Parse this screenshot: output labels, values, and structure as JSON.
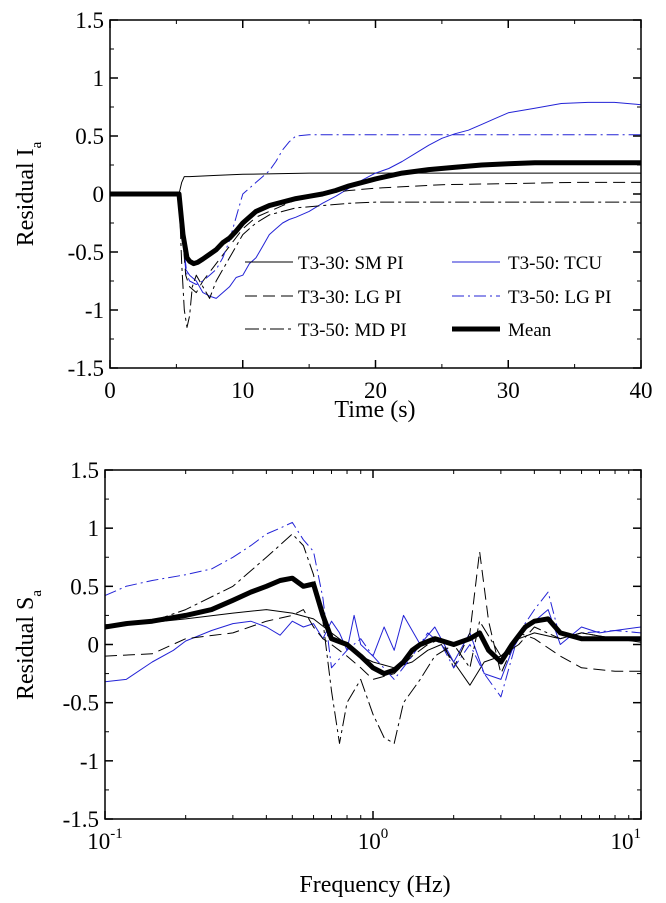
{
  "chart_data": [
    {
      "type": "line",
      "xlabel": "Time (s)",
      "ylabel_main": "Residual  I",
      "ylabel_sub": "a",
      "xlim": [
        0,
        40
      ],
      "ylim": [
        -1.5,
        1.5
      ],
      "x_ticks": [
        0,
        10,
        20,
        30,
        40
      ],
      "x_tick_labels": [
        "0",
        "10",
        "20",
        "30",
        "40"
      ],
      "y_ticks": [
        1.5,
        1,
        0.5,
        0,
        -0.5,
        -1,
        -1.5
      ],
      "y_tick_labels": [
        "1.5",
        "1",
        "0.5",
        "0",
        "-0.5",
        "-1",
        "-1.5"
      ],
      "grid": false,
      "legend_position": "lower-right",
      "series": [
        {
          "name": "T3-30: SM PI",
          "color": "#000000",
          "dash": "solid",
          "width": 1,
          "x": [
            0,
            5.2,
            5.4,
            5.6,
            6,
            8,
            10,
            15,
            20,
            25,
            30,
            35,
            40
          ],
          "y": [
            0,
            0,
            0.1,
            0.15,
            0.15,
            0.16,
            0.17,
            0.18,
            0.18,
            0.18,
            0.18,
            0.18,
            0.18
          ]
        },
        {
          "name": "T3-50: TCU",
          "color": "#2323d6",
          "dash": "solid",
          "width": 1,
          "x": [
            0,
            5.2,
            5.4,
            5.7,
            6,
            6.5,
            7,
            7.5,
            8,
            8.5,
            9,
            9.5,
            10,
            10.5,
            11,
            11.5,
            12,
            12.5,
            13,
            13.5,
            14,
            15,
            16,
            17,
            18,
            19,
            20,
            21,
            22,
            23,
            24,
            25,
            26,
            27,
            28,
            29,
            30,
            32,
            34,
            36,
            38,
            40
          ],
          "y": [
            0,
            0,
            -0.3,
            -0.65,
            -0.7,
            -0.75,
            -0.85,
            -0.88,
            -0.9,
            -0.85,
            -0.8,
            -0.72,
            -0.7,
            -0.6,
            -0.55,
            -0.45,
            -0.35,
            -0.3,
            -0.25,
            -0.22,
            -0.2,
            -0.15,
            -0.08,
            -0.02,
            0.05,
            0.12,
            0.18,
            0.22,
            0.28,
            0.35,
            0.42,
            0.48,
            0.52,
            0.55,
            0.6,
            0.65,
            0.7,
            0.74,
            0.78,
            0.79,
            0.79,
            0.77
          ]
        },
        {
          "name": "T3-30: LG PI",
          "color": "#000000",
          "dash": "12,6",
          "width": 1,
          "x": [
            0,
            5.2,
            5.5,
            5.7,
            6,
            6.5,
            7,
            8,
            9,
            10,
            11,
            12,
            13,
            14,
            16,
            18,
            20,
            25,
            30,
            35,
            40
          ],
          "y": [
            0,
            0,
            -0.4,
            -0.7,
            -0.8,
            -0.85,
            -0.75,
            -0.6,
            -0.45,
            -0.3,
            -0.2,
            -0.15,
            -0.1,
            -0.05,
            0,
            0.03,
            0.05,
            0.08,
            0.09,
            0.1,
            0.1
          ]
        },
        {
          "name": "T3-50: LG PI",
          "color": "#2323d6",
          "dash": "12,4,2,4",
          "width": 1,
          "x": [
            0,
            5.2,
            5.5,
            5.8,
            6,
            6.5,
            7,
            7.5,
            8,
            8.5,
            9,
            9.5,
            10,
            10.5,
            11,
            11.5,
            12,
            12.5,
            13,
            13.5,
            14,
            15,
            16,
            17,
            18,
            19,
            20,
            22,
            24,
            26,
            28,
            30,
            35,
            40
          ],
          "y": [
            0,
            0,
            -0.4,
            -0.7,
            -0.75,
            -0.78,
            -0.75,
            -0.7,
            -0.65,
            -0.55,
            -0.4,
            -0.2,
            0,
            0.05,
            0.1,
            0.15,
            0.2,
            0.28,
            0.38,
            0.45,
            0.5,
            0.51,
            0.51,
            0.51,
            0.51,
            0.51,
            0.51,
            0.51,
            0.51,
            0.51,
            0.51,
            0.51,
            0.51,
            0.51
          ]
        },
        {
          "name": "T3-50: MD PI",
          "color": "#000000",
          "dash": "14,4,3,4",
          "width": 1,
          "x": [
            0,
            5.2,
            5.4,
            5.6,
            5.8,
            6,
            6.2,
            6.5,
            7,
            7.5,
            8,
            9,
            10,
            11,
            12,
            13,
            14,
            16,
            18,
            20,
            25,
            30,
            35,
            40
          ],
          "y": [
            0,
            0,
            -0.6,
            -1,
            -1.15,
            -1.05,
            -0.8,
            -0.7,
            -0.8,
            -0.9,
            -0.75,
            -0.55,
            -0.35,
            -0.25,
            -0.18,
            -0.15,
            -0.12,
            -0.1,
            -0.08,
            -0.07,
            -0.07,
            -0.07,
            -0.07,
            -0.07
          ]
        },
        {
          "name": "Mean",
          "color": "#000000",
          "dash": "solid",
          "width": 5,
          "x": [
            0,
            5.2,
            5.5,
            5.8,
            6,
            6.3,
            6.6,
            7,
            7.5,
            8,
            8.5,
            9,
            9.5,
            10,
            11,
            12,
            13,
            14,
            15,
            16,
            17,
            18,
            20,
            22,
            24,
            26,
            28,
            30,
            32,
            35,
            38,
            40
          ],
          "y": [
            0,
            0,
            -0.35,
            -0.55,
            -0.58,
            -0.6,
            -0.59,
            -0.56,
            -0.52,
            -0.48,
            -0.42,
            -0.38,
            -0.32,
            -0.25,
            -0.15,
            -0.1,
            -0.07,
            -0.04,
            -0.02,
            0,
            0.03,
            0.07,
            0.13,
            0.18,
            0.21,
            0.23,
            0.25,
            0.26,
            0.27,
            0.27,
            0.27,
            0.27
          ]
        }
      ]
    },
    {
      "type": "line",
      "xlabel": "Frequency (Hz)",
      "ylabel_main": "Residual  S",
      "ylabel_sub": "a",
      "xscale": "log",
      "xlim": [
        0.1,
        10
      ],
      "ylim": [
        -1.5,
        1.5
      ],
      "x_ticks": [
        0.1,
        1,
        10
      ],
      "x_tick_labels": [
        {
          "base": "10",
          "exp": "-1"
        },
        {
          "base": "10",
          "exp": "0"
        },
        {
          "base": "10",
          "exp": "1"
        }
      ],
      "y_ticks": [
        1.5,
        1,
        0.5,
        0,
        -0.5,
        -1,
        -1.5
      ],
      "y_tick_labels": [
        "1.5",
        "1",
        "0.5",
        "0",
        "-0.5",
        "-1",
        "-1.5"
      ],
      "grid": false,
      "series": [
        {
          "name": "T3-30: SM PI",
          "color": "#000000",
          "dash": "solid",
          "width": 1,
          "x": [
            0.1,
            0.15,
            0.2,
            0.3,
            0.4,
            0.5,
            0.6,
            0.7,
            0.8,
            0.9,
            1.0,
            1.2,
            1.4,
            1.6,
            1.8,
            2.0,
            2.3,
            2.6,
            3.0,
            3.5,
            4.0,
            5.0,
            6.0,
            8.0,
            10
          ],
          "y": [
            0.17,
            0.19,
            0.22,
            0.27,
            0.3,
            0.27,
            0.22,
            0.1,
            0,
            -0.1,
            -0.15,
            -0.2,
            -0.15,
            -0.05,
            0,
            -0.15,
            -0.35,
            -0.15,
            -0.1,
            0.05,
            0.1,
            0.05,
            0.1,
            0.05,
            0.02
          ]
        },
        {
          "name": "T3-50: TCU",
          "color": "#2323d6",
          "dash": "solid",
          "width": 1,
          "x": [
            0.1,
            0.12,
            0.15,
            0.18,
            0.2,
            0.25,
            0.3,
            0.35,
            0.4,
            0.45,
            0.5,
            0.55,
            0.6,
            0.65,
            0.7,
            0.75,
            0.8,
            0.85,
            0.9,
            1.0,
            1.1,
            1.2,
            1.3,
            1.5,
            1.7,
            2.0,
            2.3,
            2.6,
            3.0,
            3.3,
            3.6,
            4.0,
            4.5,
            5.0,
            6.0,
            7.0,
            8.0,
            10
          ],
          "y": [
            -0.32,
            -0.3,
            -0.15,
            -0.05,
            0.03,
            0.12,
            0.18,
            0.2,
            0.15,
            0.08,
            0.2,
            0.15,
            0.18,
            0.05,
            0.2,
            0.1,
            -0.05,
            0.25,
            0.0,
            -0.1,
            0.15,
            -0.05,
            0.25,
            0.0,
            0.15,
            -0.15,
            0.1,
            -0.25,
            -0.3,
            -0.05,
            0.1,
            0.2,
            0.3,
            0.0,
            0.15,
            0.1,
            0.12,
            0.15
          ]
        },
        {
          "name": "T3-30: LG PI",
          "color": "#000000",
          "dash": "12,6",
          "width": 1,
          "x": [
            0.1,
            0.15,
            0.2,
            0.3,
            0.4,
            0.5,
            0.55,
            0.6,
            0.65,
            0.7,
            0.8,
            0.9,
            1.0,
            1.2,
            1.4,
            1.6,
            1.8,
            2.0,
            2.3,
            2.5,
            2.7,
            3.0,
            3.5,
            4.0,
            5.0,
            6.0,
            8.0,
            10
          ],
          "y": [
            -0.1,
            -0.08,
            0.05,
            0.1,
            0.2,
            0.25,
            0.3,
            0.15,
            0.05,
            0.0,
            -0.1,
            -0.2,
            -0.3,
            -0.25,
            -0.1,
            0.0,
            0.05,
            -0.2,
            0.1,
            0.8,
            0.2,
            -0.25,
            0.1,
            0.05,
            -0.1,
            -0.2,
            -0.23,
            -0.23
          ]
        },
        {
          "name": "T3-50: LG PI",
          "color": "#2323d6",
          "dash": "12,4,2,4",
          "width": 1,
          "x": [
            0.1,
            0.12,
            0.15,
            0.2,
            0.25,
            0.3,
            0.35,
            0.4,
            0.45,
            0.5,
            0.55,
            0.6,
            0.65,
            0.7,
            0.8,
            0.9,
            1.0,
            1.2,
            1.4,
            1.6,
            1.8,
            2.0,
            2.3,
            2.6,
            3.0,
            3.5,
            4.0,
            4.5,
            5.0,
            6.0,
            8.0,
            10
          ],
          "y": [
            0.42,
            0.5,
            0.55,
            0.6,
            0.65,
            0.75,
            0.85,
            0.95,
            1.0,
            1.05,
            0.9,
            0.8,
            0.4,
            -0.2,
            -0.05,
            0.05,
            -0.1,
            -0.3,
            -0.1,
            0.1,
            0.0,
            -0.2,
            0.0,
            -0.25,
            -0.45,
            0.1,
            0.3,
            0.45,
            0.05,
            0.1,
            0.12,
            0.1
          ]
        },
        {
          "name": "T3-50: MD PI",
          "color": "#000000",
          "dash": "14,4,3,4",
          "width": 1,
          "x": [
            0.1,
            0.15,
            0.2,
            0.3,
            0.4,
            0.5,
            0.55,
            0.6,
            0.65,
            0.7,
            0.75,
            0.8,
            0.9,
            1.0,
            1.1,
            1.2,
            1.3,
            1.5,
            1.7,
            2.0,
            2.3,
            2.5,
            3.0,
            3.5,
            4.0,
            5.0,
            6.0,
            8.0,
            10
          ],
          "y": [
            0.15,
            0.2,
            0.3,
            0.5,
            0.75,
            0.95,
            0.85,
            0.6,
            0.2,
            -0.4,
            -0.85,
            -0.5,
            -0.3,
            -0.6,
            -0.8,
            -0.85,
            -0.5,
            -0.3,
            -0.1,
            0.0,
            -0.2,
            0.2,
            -0.1,
            0.0,
            0.15,
            0.05,
            0.1,
            0.05,
            0.05
          ]
        },
        {
          "name": "Mean",
          "color": "#000000",
          "dash": "solid",
          "width": 5,
          "x": [
            0.1,
            0.12,
            0.15,
            0.2,
            0.25,
            0.3,
            0.35,
            0.4,
            0.45,
            0.5,
            0.55,
            0.6,
            0.65,
            0.7,
            0.8,
            0.9,
            1.0,
            1.1,
            1.2,
            1.3,
            1.4,
            1.5,
            1.7,
            2.0,
            2.3,
            2.5,
            2.7,
            3.0,
            3.3,
            3.7,
            4.0,
            4.5,
            5.0,
            6.0,
            7.0,
            8.0,
            10
          ],
          "y": [
            0.15,
            0.18,
            0.2,
            0.25,
            0.3,
            0.38,
            0.45,
            0.5,
            0.55,
            0.57,
            0.5,
            0.52,
            0.25,
            0.05,
            0.0,
            -0.1,
            -0.2,
            -0.25,
            -0.22,
            -0.15,
            -0.05,
            0.0,
            0.05,
            0.0,
            0.05,
            0.1,
            -0.05,
            -0.15,
            0.0,
            0.15,
            0.2,
            0.22,
            0.1,
            0.05,
            0.05,
            0.05,
            0.05
          ]
        }
      ]
    }
  ]
}
